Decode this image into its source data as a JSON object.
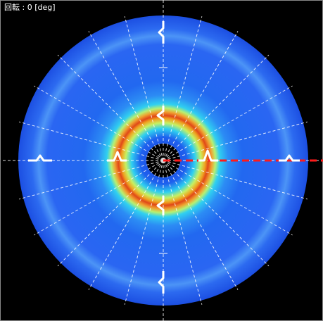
{
  "overlay": {
    "label": "回転 : 0 [deg]"
  }
}
